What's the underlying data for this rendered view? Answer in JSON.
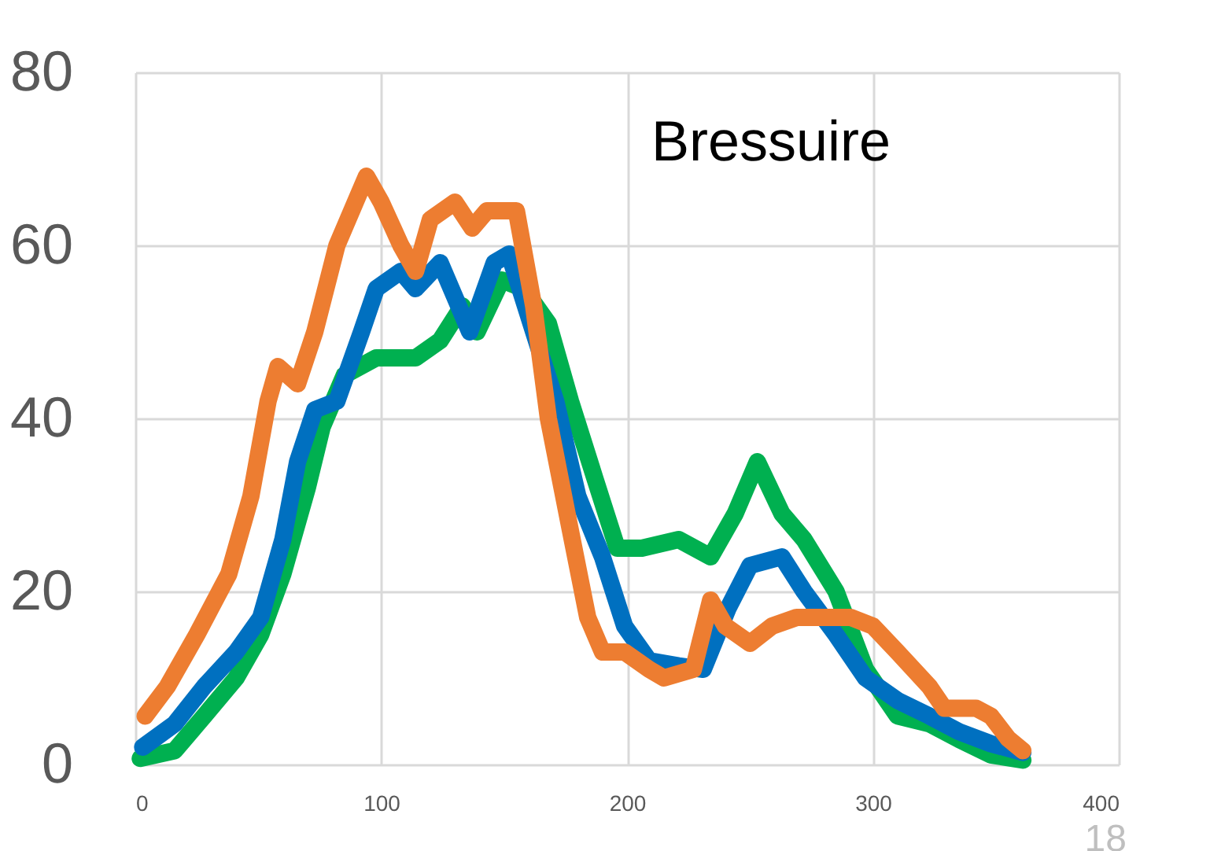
{
  "chart_data": {
    "type": "line",
    "title": "Bressuire",
    "xlim": [
      0,
      400
    ],
    "xticks": [
      0,
      100,
      200,
      300,
      400
    ],
    "ylim": [
      0,
      80
    ],
    "yticks": [
      0,
      20,
      40,
      60,
      80
    ],
    "grid": true,
    "line_style": "solid",
    "series": [
      {
        "color": "#00b050",
        "x": [
          2,
          16,
          28,
          41,
          51,
          60,
          70,
          76,
          85,
          98,
          114,
          124,
          133,
          139,
          149,
          158,
          168,
          177,
          187,
          196,
          206,
          221,
          234,
          244,
          253,
          263,
          272,
          285,
          297,
          310,
          323,
          335,
          348,
          361
        ],
        "values": [
          0.7,
          1.6,
          5.6,
          10,
          15,
          22,
          32,
          39,
          45,
          47,
          47,
          49,
          53,
          50,
          56,
          55,
          51,
          42,
          33,
          25,
          25,
          26,
          24,
          29,
          35,
          29,
          26,
          20,
          11,
          5.6,
          4.7,
          2.9,
          1.1,
          0.5
        ]
      },
      {
        "color": "#0070c0",
        "x": [
          3,
          16,
          28,
          41,
          51,
          60,
          66,
          73,
          82,
          92,
          98,
          108,
          114,
          124,
          136,
          146,
          152,
          162,
          171,
          180,
          190,
          199,
          209,
          221,
          231,
          241,
          250,
          263,
          272,
          285,
          297,
          310,
          323,
          335,
          348,
          361
        ],
        "values": [
          2,
          4.7,
          9,
          13,
          17,
          26,
          35,
          41,
          42,
          50,
          55,
          57,
          55,
          58,
          50,
          58,
          59,
          50,
          42,
          31,
          24,
          16,
          12,
          11.4,
          11,
          18,
          23,
          24,
          20,
          15,
          10,
          7.4,
          5.6,
          3.8,
          2.4,
          1.4
        ]
      },
      {
        "color": "#ed7d31",
        "x": [
          4,
          13,
          25,
          38,
          47,
          54,
          58,
          66,
          73,
          82,
          94,
          100,
          108,
          114,
          120,
          130,
          137,
          143,
          155,
          162,
          168,
          177,
          184,
          190,
          199,
          209,
          215,
          227,
          234,
          240,
          250,
          259,
          269,
          281,
          291,
          300,
          310,
          323,
          329,
          342,
          348,
          355,
          361
        ],
        "values": [
          5.6,
          9,
          15,
          22,
          31,
          42,
          46,
          44,
          50,
          60,
          68,
          65,
          60,
          57,
          63,
          65,
          62,
          64,
          64,
          53,
          40,
          27,
          17,
          13,
          13,
          11,
          10,
          11,
          19,
          16,
          14,
          16,
          17,
          17,
          17,
          16,
          13,
          9,
          6.5,
          6.5,
          5.6,
          3,
          1.6
        ]
      }
    ],
    "annotations": [
      "18"
    ]
  }
}
